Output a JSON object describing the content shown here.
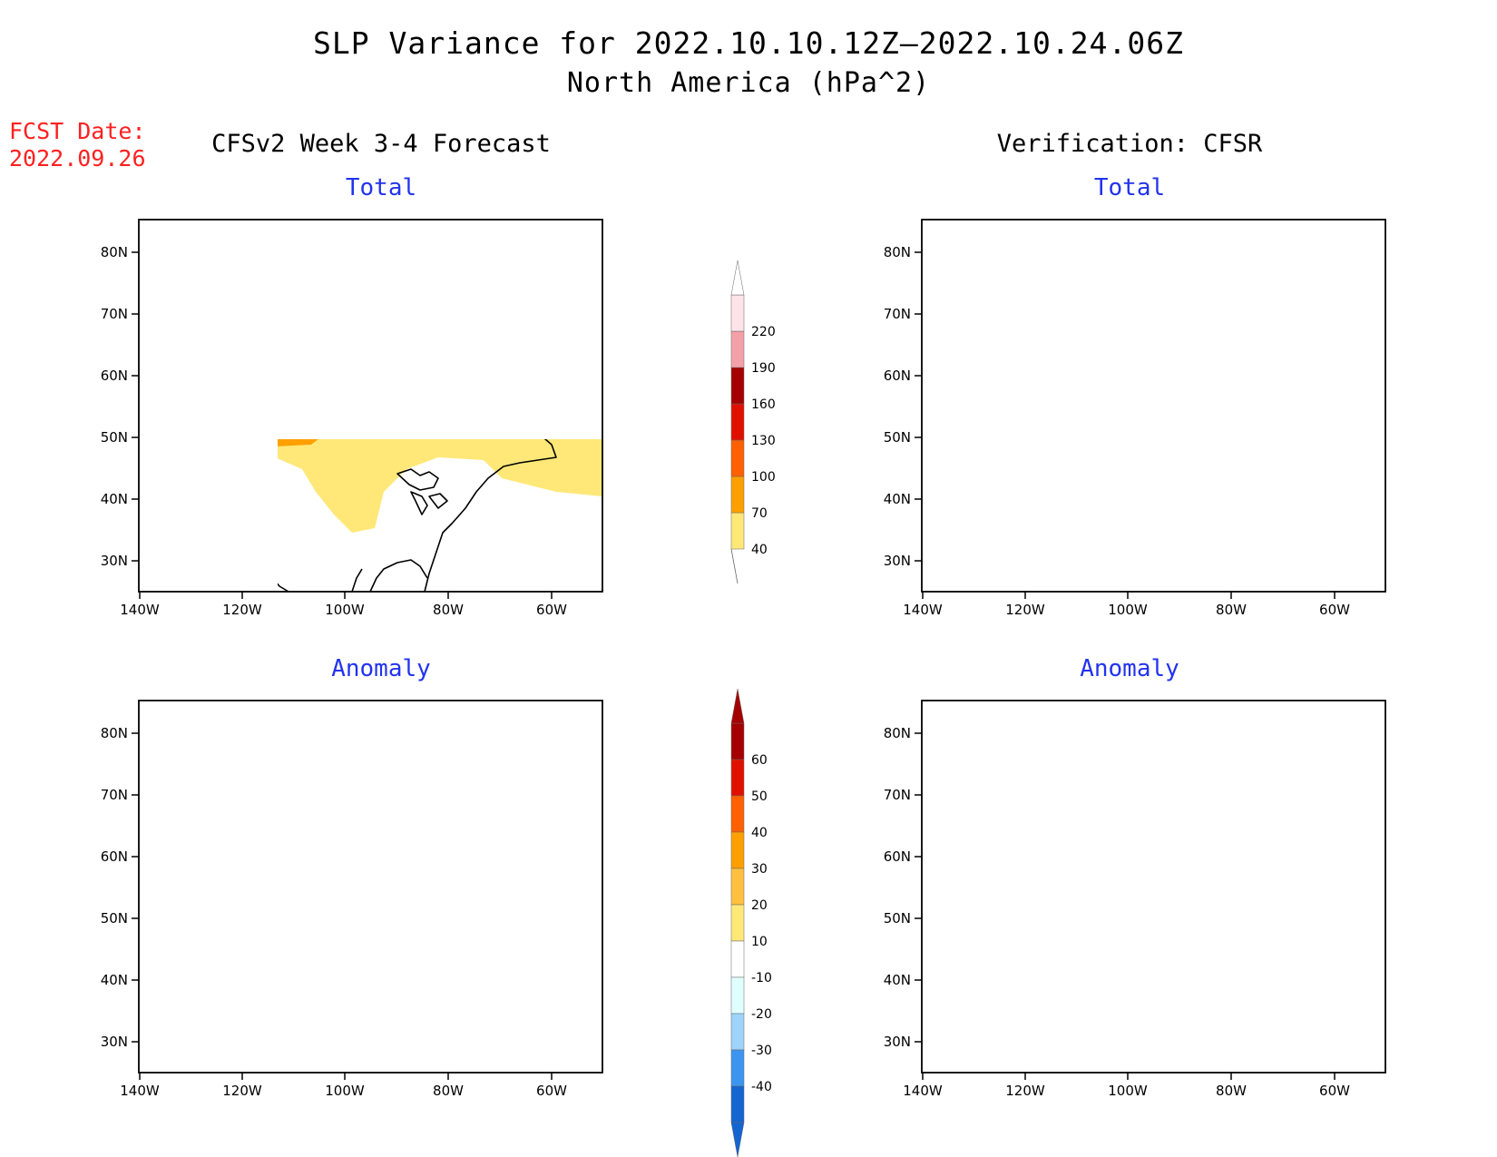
{
  "header": {
    "title_line1": "SLP Variance for 2022.10.10.12Z—2022.10.24.06Z",
    "title_line2": "North America (hPa^2)",
    "fcst_label": "FCST Date:",
    "fcst_date": "2022.09.26"
  },
  "columns": {
    "left": "CFSv2 Week 3-4 Forecast",
    "right": "Verification: CFSR"
  },
  "panels": {
    "total_label": "Total",
    "anomaly_label": "Anomaly"
  },
  "axes": {
    "lat_labels": [
      "80N",
      "70N",
      "60N",
      "50N",
      "40N",
      "30N"
    ],
    "lon_labels": [
      "140W",
      "120W",
      "100W",
      "80W",
      "60W"
    ]
  },
  "colorbar_total": {
    "levels": [
      "40",
      "70",
      "100",
      "130",
      "160",
      "190",
      "220"
    ],
    "colors": [
      "#ffe878",
      "#ffa000",
      "#ff6000",
      "#e01000",
      "#a50000",
      "#f4a0a8",
      "#fde4e8"
    ]
  },
  "colorbar_anomaly": {
    "levels": [
      "60",
      "50",
      "40",
      "30",
      "20",
      "10",
      "-10",
      "-20",
      "-30",
      "-40"
    ],
    "colors": [
      "#a50000",
      "#e01000",
      "#ff6000",
      "#ffa000",
      "#ffc040",
      "#ffe878",
      "#ffffff",
      "#e0ffff",
      "#9ed3fa",
      "#3c96f0",
      "#1464d2"
    ]
  }
}
